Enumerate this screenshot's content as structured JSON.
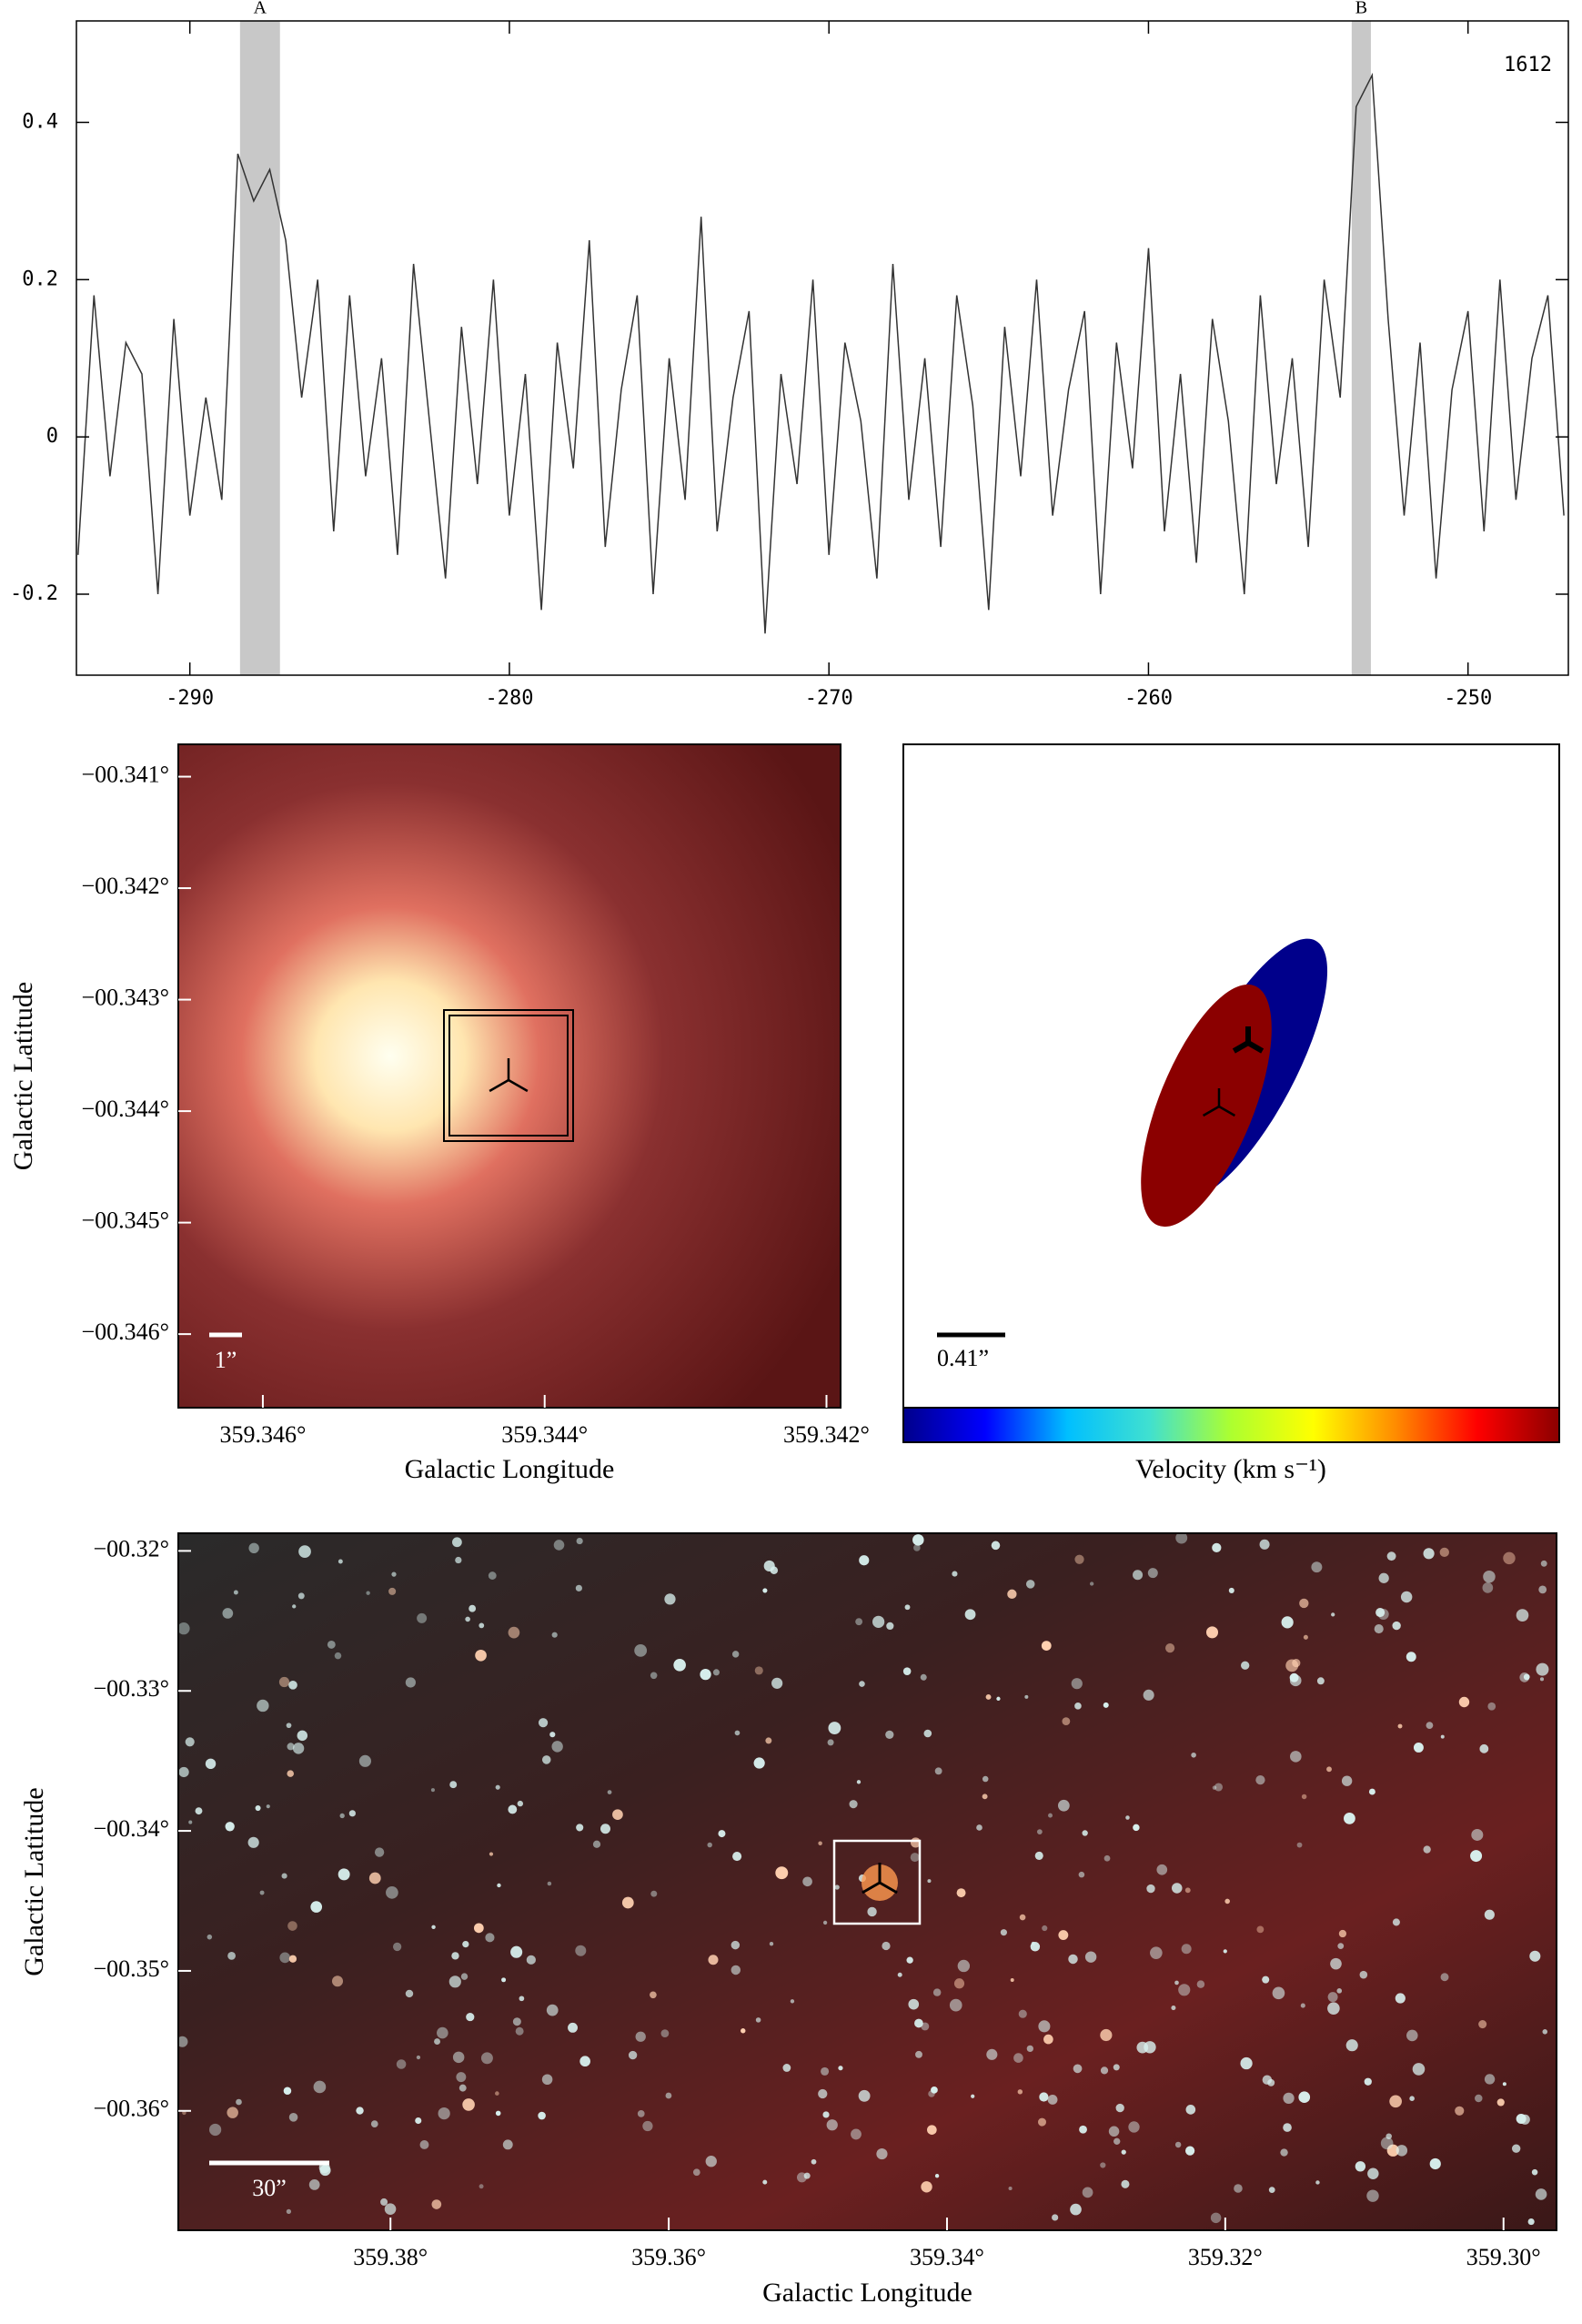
{
  "chart_data": [
    {
      "type": "line",
      "label": "1612",
      "xlim": [
        -293.55,
        -246.86
      ],
      "ylim": [
        -0.303,
        0.529
      ],
      "xticks": [
        -290,
        -280,
        -270,
        -260,
        -250
      ],
      "yticks": [
        -0.2,
        0,
        0.2,
        0.4
      ],
      "color": "#333333",
      "bands": [
        {
          "label": "A",
          "range": [
            -288.43,
            -287.18
          ]
        },
        {
          "label": "B",
          "range": [
            -253.64,
            -253.04
          ]
        }
      ],
      "band_color": "#c8c8c8",
      "x": [
        -293.5,
        -293,
        -292.5,
        -292,
        -291.5,
        -291,
        -290.5,
        -290,
        -289.5,
        -289,
        -288.5,
        -288,
        -287.5,
        -287,
        -286.5,
        -286,
        -285.5,
        -285,
        -284.5,
        -284,
        -283.5,
        -283,
        -282.5,
        -282,
        -281.5,
        -281,
        -280.5,
        -280,
        -279.5,
        -279,
        -278.5,
        -278,
        -277.5,
        -277,
        -276.5,
        -276,
        -275.5,
        -275,
        -274.5,
        -274,
        -273.5,
        -273,
        -272.5,
        -272,
        -271.5,
        -271,
        -270.5,
        -270,
        -269.5,
        -269,
        -268.5,
        -268,
        -267.5,
        -267,
        -266.5,
        -266,
        -265.5,
        -265,
        -264.5,
        -264,
        -263.5,
        -263,
        -262.5,
        -262,
        -261.5,
        -261,
        -260.5,
        -260,
        -259.5,
        -259,
        -258.5,
        -258,
        -257.5,
        -257,
        -256.5,
        -256,
        -255.5,
        -255,
        -254.5,
        -254,
        -253.5,
        -253,
        -252.5,
        -252,
        -251.5,
        -251,
        -250.5,
        -250,
        -249.5,
        -249,
        -248.5,
        -248,
        -247.5,
        -247
      ],
      "values": [
        -0.15,
        0.18,
        -0.05,
        0.12,
        0.08,
        -0.2,
        0.15,
        -0.1,
        0.05,
        -0.08,
        0.36,
        0.3,
        0.34,
        0.25,
        0.05,
        0.2,
        -0.12,
        0.18,
        -0.05,
        0.1,
        -0.15,
        0.22,
        0.02,
        -0.18,
        0.14,
        -0.06,
        0.2,
        -0.1,
        0.08,
        -0.22,
        0.12,
        -0.04,
        0.25,
        -0.14,
        0.06,
        0.18,
        -0.2,
        0.1,
        -0.08,
        0.28,
        -0.12,
        0.05,
        0.16,
        -0.25,
        0.08,
        -0.06,
        0.2,
        -0.15,
        0.12,
        0.02,
        -0.18,
        0.22,
        -0.08,
        0.1,
        -0.14,
        0.18,
        0.04,
        -0.22,
        0.14,
        -0.05,
        0.2,
        -0.1,
        0.06,
        0.16,
        -0.2,
        0.12,
        -0.04,
        0.24,
        -0.12,
        0.08,
        -0.16,
        0.15,
        0.02,
        -0.2,
        0.18,
        -0.06,
        0.1,
        -0.14,
        0.2,
        0.05,
        0.42,
        0.46,
        0.15,
        -0.1,
        0.12,
        -0.18,
        0.06,
        0.16,
        -0.12,
        0.2,
        -0.08,
        0.1,
        0.18,
        -0.1
      ]
    },
    {
      "type": "image",
      "x_label": "Galactic Longitude",
      "y_label": "Galactic Latitude",
      "scale_label": "1”",
      "xlim": [
        359.3466,
        359.3419
      ],
      "ylim": [
        -0.34666,
        -0.34071
      ],
      "xticks": [
        {
          "value": 359.346,
          "label": "359.346°"
        },
        {
          "value": 359.344,
          "label": "359.344°"
        },
        {
          "value": 359.342,
          "label": "359.342°"
        }
      ],
      "yticks": [
        {
          "value": -0.341,
          "label": "−00.341°"
        },
        {
          "value": -0.342,
          "label": "−00.342°"
        },
        {
          "value": -0.343,
          "label": "−00.343°"
        },
        {
          "value": -0.344,
          "label": "−00.344°"
        },
        {
          "value": -0.345,
          "label": "−00.345°"
        },
        {
          "value": -0.346,
          "label": "−00.346°"
        }
      ]
    },
    {
      "type": "ellipses",
      "scale_label": "0.41”",
      "colorbar_label": "Velocity (km s⁻¹)",
      "colors": [
        "#00008b",
        "#8b0000"
      ],
      "colormap": [
        "#00008b",
        "#0000ff",
        "#00bfff",
        "#40e0d0",
        "#adff2f",
        "#ffff00",
        "#ff8c00",
        "#ff0000",
        "#8b0000"
      ]
    },
    {
      "type": "image",
      "x_label": "Galactic Longitude",
      "y_label": "Galactic Latitude",
      "scale_label": "30”",
      "xlim": [
        359.39525,
        359.29619
      ],
      "ylim": [
        -0.36853,
        -0.31874
      ],
      "xticks": [
        {
          "value": 359.38,
          "label": "359.38°"
        },
        {
          "value": 359.36,
          "label": "359.36°"
        },
        {
          "value": 359.34,
          "label": "359.34°"
        },
        {
          "value": 359.32,
          "label": "359.32°"
        },
        {
          "value": 359.3,
          "label": "359.30°"
        }
      ],
      "yticks": [
        {
          "value": -0.32,
          "label": "−00.32°"
        },
        {
          "value": -0.33,
          "label": "−00.33°"
        },
        {
          "value": -0.34,
          "label": "−00.34°"
        },
        {
          "value": -0.35,
          "label": "−00.35°"
        },
        {
          "value": -0.36,
          "label": "−00.36°"
        }
      ]
    }
  ]
}
